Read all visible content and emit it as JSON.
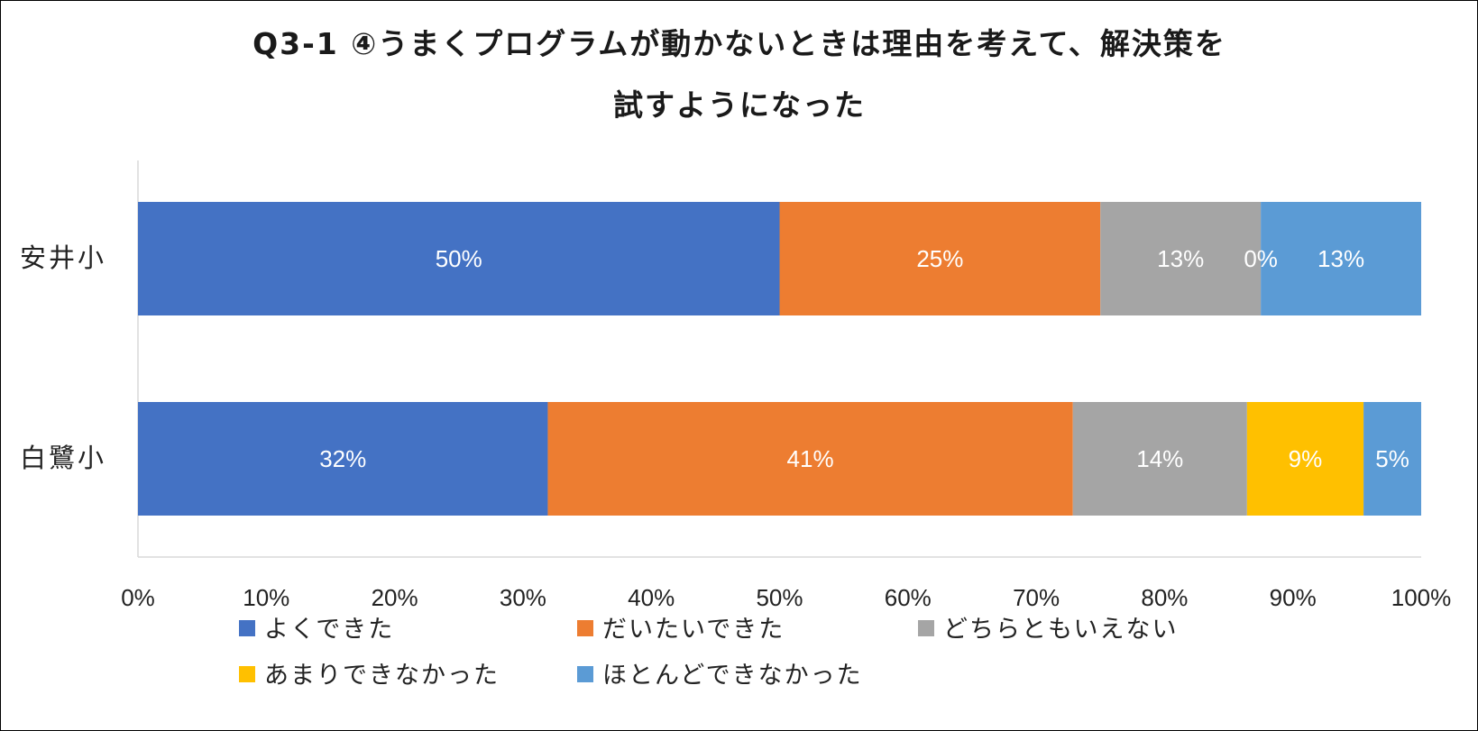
{
  "chart_data": {
    "type": "bar",
    "orientation": "horizontal",
    "stacked": "percent",
    "title_lines": [
      "Q3-1 ④うまくプログラムが動かないときは理由を考えて、解決策を",
      "試すようになった"
    ],
    "categories": [
      "安井小",
      "白鷺小"
    ],
    "series": [
      {
        "name": "よくできた",
        "color": "#4472C4",
        "values": [
          50,
          32
        ],
        "labels": [
          "50%",
          "32%"
        ]
      },
      {
        "name": "だいたいできた",
        "color": "#ED7D31",
        "values": [
          25,
          41
        ],
        "labels": [
          "25%",
          "41%"
        ]
      },
      {
        "name": "どちらともいえない",
        "color": "#A5A5A5",
        "values": [
          12.5,
          13.6
        ],
        "labels": [
          "13%",
          "14%"
        ]
      },
      {
        "name": "あまりできなかった",
        "color": "#FFC000",
        "values": [
          0,
          9.1
        ],
        "labels": [
          "0%",
          "9%"
        ]
      },
      {
        "name": "ほとんどできなかった",
        "color": "#5B9BD5",
        "values": [
          12.5,
          4.5
        ],
        "labels": [
          "13%",
          "5%"
        ]
      }
    ],
    "xlim": [
      0,
      100
    ],
    "x_ticks": [
      "0%",
      "10%",
      "20%",
      "30%",
      "40%",
      "50%",
      "60%",
      "70%",
      "80%",
      "90%",
      "100%"
    ],
    "grid": false,
    "legend_position": "bottom"
  }
}
